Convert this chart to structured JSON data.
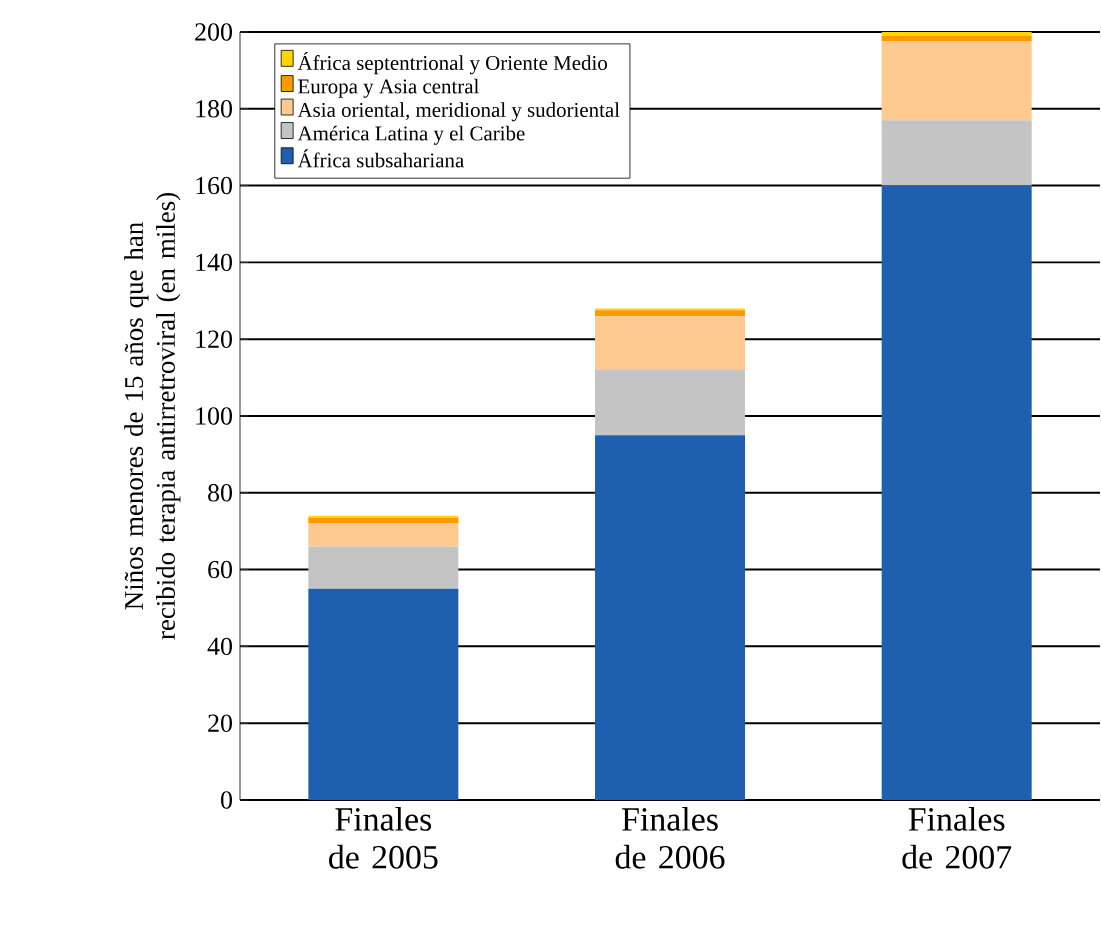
{
  "chart_data": {
    "type": "bar",
    "stacked": true,
    "ylabel": "Niños menores de 15 años que han recibido terapia antirretroviral (en miles)",
    "categories": [
      "Finales de 2005",
      "Finales de 2006",
      "Finales de 2007"
    ],
    "series": [
      {
        "name": "África subsahariana",
        "color": "#1f5fb0",
        "values": [
          55,
          95,
          160
        ]
      },
      {
        "name": "América Latina y el Caribe",
        "color": "#c4c4c4",
        "values": [
          11,
          17,
          17
        ]
      },
      {
        "name": "Asia oriental, meridional y sudoriental",
        "color": "#fdc98f",
        "values": [
          6,
          14,
          20.5
        ]
      },
      {
        "name": "Europa y Asia central",
        "color": "#ff9900",
        "values": [
          1.5,
          1.5,
          1.5
        ]
      },
      {
        "name": "África septentrional y Oriente Medio",
        "color": "#ffd700",
        "values": [
          0.5,
          0.5,
          1
        ]
      }
    ],
    "ylim": [
      0,
      200
    ],
    "yticks": [
      0,
      20,
      40,
      60,
      80,
      100,
      120,
      140,
      160,
      180,
      200
    ],
    "grid": "y",
    "legend": "top left"
  }
}
